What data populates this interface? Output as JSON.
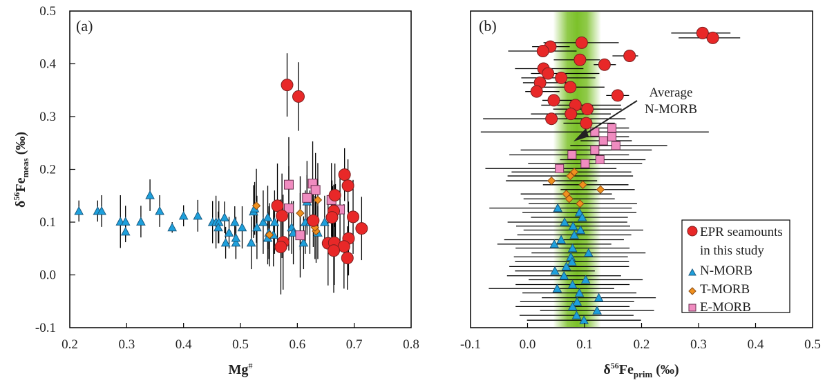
{
  "chart_data": [
    {
      "type": "scatter",
      "panel_label": "(a)",
      "xlabel": "Mg#",
      "xlabel_main": "Mg",
      "xlabel_sup": "#",
      "ylabel_main": "δ",
      "ylabel_sup": "56",
      "ylabel_fe": "Fe",
      "ylabel_sub": "meas",
      "ylabel_unit": " (‰)",
      "xlim": [
        0.2,
        0.8
      ],
      "ylim": [
        -0.1,
        0.5
      ],
      "xticks": [
        "0.2",
        "0.3",
        "0.4",
        "0.5",
        "0.6",
        "0.7",
        "0.8"
      ],
      "yticks": [
        "-0.1",
        "0.0",
        "0.1",
        "0.2",
        "0.3",
        "0.4",
        "0.5"
      ],
      "xtick_values": [
        0.2,
        0.3,
        0.4,
        0.5,
        0.6,
        0.7,
        0.8
      ],
      "ytick_values": [
        -0.1,
        0.0,
        0.1,
        0.2,
        0.3,
        0.4,
        0.5
      ],
      "grid": false,
      "series": [
        {
          "name": "N-MORB",
          "marker": "triangle",
          "color": "#1ea0dc",
          "points": [
            [
              0.216,
              0.121,
              0.02
            ],
            [
              0.249,
              0.121,
              0.02
            ],
            [
              0.256,
              0.121,
              0.03
            ],
            [
              0.289,
              0.101,
              0.05
            ],
            [
              0.298,
              0.101,
              0.03
            ],
            [
              0.298,
              0.082,
              0.02
            ],
            [
              0.325,
              0.101,
              0.03
            ],
            [
              0.341,
              0.151,
              0.03
            ],
            [
              0.358,
              0.121,
              0.03
            ],
            [
              0.38,
              0.09,
              0.01
            ],
            [
              0.4,
              0.112,
              0.02
            ],
            [
              0.425,
              0.112,
              0.03
            ],
            [
              0.451,
              0.1,
              0.04
            ],
            [
              0.457,
              0.1,
              0.05
            ],
            [
              0.462,
              0.1,
              0.04
            ],
            [
              0.461,
              0.09,
              0.03
            ],
            [
              0.472,
              0.109,
              0.03
            ],
            [
              0.49,
              0.1,
              0.03
            ],
            [
              0.48,
              0.08,
              0.03
            ],
            [
              0.474,
              0.061,
              0.03
            ],
            [
              0.492,
              0.061,
              0.03
            ],
            [
              0.492,
              0.07,
              0.04
            ],
            [
              0.503,
              0.09,
              0.04
            ],
            [
              0.519,
              0.061,
              0.05
            ],
            [
              0.523,
              0.12,
              0.05
            ],
            [
              0.525,
              0.126,
              0.05
            ],
            [
              0.529,
              0.09,
              0.06
            ],
            [
              0.54,
              0.1,
              0.06
            ],
            [
              0.548,
              0.109,
              0.06
            ],
            [
              0.55,
              0.08,
              0.05
            ],
            [
              0.548,
              0.07,
              0.05
            ],
            [
              0.56,
              0.1,
              0.06
            ],
            [
              0.558,
              0.076,
              0.06
            ],
            [
              0.59,
              0.09,
              0.05
            ],
            [
              0.593,
              0.08,
              0.06
            ],
            [
              0.611,
              0.061,
              0.05
            ],
            [
              0.617,
              0.139,
              0.05
            ],
            [
              0.614,
              0.1,
              0.06
            ],
            [
              0.622,
              0.1,
              0.06
            ],
            [
              0.636,
              0.08,
              0.05
            ],
            [
              0.648,
              0.1,
              0.05
            ],
            [
              0.667,
              0.122,
              0.05
            ],
            [
              0.662,
              0.108,
              0.06
            ]
          ]
        },
        {
          "name": "T-MORB",
          "marker": "diamond",
          "color": "#f0901e",
          "points": [
            [
              0.528,
              0.131,
              0.07
            ],
            [
              0.636,
              0.142,
              0.07
            ],
            [
              0.605,
              0.117,
              0.07
            ],
            [
              0.633,
              0.083,
              0.06
            ],
            [
              0.551,
              0.076,
              0.06
            ],
            [
              0.631,
              0.09,
              0.06
            ]
          ]
        },
        {
          "name": "E-MORB",
          "marker": "square",
          "color": "#f08cc0",
          "points": [
            [
              0.585,
              0.171,
              0.09
            ],
            [
              0.627,
              0.173,
              0.08
            ],
            [
              0.632,
              0.161,
              0.07
            ],
            [
              0.617,
              0.146,
              0.07
            ],
            [
              0.585,
              0.126,
              0.08
            ],
            [
              0.605,
              0.075,
              0.08
            ],
            [
              0.66,
              0.142,
              0.07
            ],
            [
              0.675,
              0.124,
              0.06
            ]
          ]
        },
        {
          "name": "EPR seamounts in this study",
          "marker": "circle",
          "color": "#e82828",
          "points": [
            [
              0.582,
              0.36,
              0.06
            ],
            [
              0.602,
              0.338,
              0.065
            ],
            [
              0.683,
              0.19,
              0.05
            ],
            [
              0.689,
              0.169,
              0.05
            ],
            [
              0.666,
              0.151,
              0.06
            ],
            [
              0.628,
              0.103,
              0.05
            ],
            [
              0.664,
              0.121,
              0.05
            ],
            [
              0.661,
              0.109,
              0.07
            ],
            [
              0.698,
              0.11,
              0.07
            ],
            [
              0.713,
              0.088,
              0.06
            ],
            [
              0.69,
              0.069,
              0.07
            ],
            [
              0.654,
              0.06,
              0.08
            ],
            [
              0.665,
              0.061,
              0.08
            ],
            [
              0.682,
              0.054,
              0.08
            ],
            [
              0.664,
              0.046,
              0.08
            ],
            [
              0.688,
              0.032,
              0.06
            ],
            [
              0.565,
              0.131,
              0.08
            ],
            [
              0.573,
              0.112,
              0.08
            ],
            [
              0.575,
              0.062,
              0.09
            ],
            [
              0.571,
              0.053,
              0.09
            ]
          ]
        }
      ]
    },
    {
      "type": "scatter",
      "panel_label": "(b)",
      "xlabel": "δ56Feprim (‰)",
      "xlabel_main": "δ",
      "xlabel_sup": "56",
      "xlabel_fe": "Fe",
      "xlabel_sub": "prim",
      "xlabel_unit": " (‰)",
      "ylabel": "",
      "xlim": [
        -0.1,
        0.5
      ],
      "ylim_rows": [
        0,
        72
      ],
      "xticks": [
        "-0.1",
        "0.0",
        "0.1",
        "0.2",
        "0.3",
        "0.4",
        "0.5"
      ],
      "xtick_values": [
        -0.1,
        0.0,
        0.1,
        0.2,
        0.3,
        0.4,
        0.5
      ],
      "grid": false,
      "average_band": {
        "label": "Average N-MORB",
        "center": 0.087,
        "half_width": 0.04,
        "color": "#7cc12a"
      },
      "annotation": {
        "line1": "Average",
        "line2": "N-MORB"
      },
      "legend": {
        "position": "bottom-right",
        "entries": [
          {
            "marker": "circle",
            "color": "#e82828",
            "line1": "EPR seamounts",
            "line2": "in this study"
          },
          {
            "marker": "triangle",
            "color": "#1ea0dc",
            "line1": "N-MORB"
          },
          {
            "marker": "diamond",
            "color": "#f0901e",
            "line1": "T-MORB"
          },
          {
            "marker": "square",
            "color": "#f08cc0",
            "line1": "E-MORB"
          }
        ]
      },
      "series": [
        {
          "name": "EPR seamounts in this study",
          "marker": "circle",
          "color": "#e82828",
          "points": [
            [
              0.307,
              5.0,
              -0.055,
              0.049
            ],
            [
              0.325,
              6.1,
              -0.06,
              0.048
            ],
            [
              0.095,
              7.2,
              -0.067,
              0.065
            ],
            [
              0.04,
              8.1,
              -0.032,
              0.034
            ],
            [
              0.027,
              9.1,
              -0.061,
              0.059
            ],
            [
              0.179,
              10.2,
              -0.03,
              0.015
            ],
            [
              0.092,
              11.1,
              -0.046,
              0.035
            ],
            [
              0.135,
              12.2,
              -0.019,
              0.02
            ],
            [
              0.028,
              13.1,
              -0.05,
              0.07
            ],
            [
              0.036,
              14.2,
              -0.03,
              0.09
            ],
            [
              0.059,
              15.2,
              -0.07,
              0.06
            ],
            [
              0.022,
              16.3,
              -0.03,
              0.05
            ],
            [
              0.075,
              17.3,
              -0.06,
              0.06
            ],
            [
              0.016,
              18.3,
              -0.02,
              0.04
            ],
            [
              0.158,
              19.2,
              -0.02,
              0.02
            ],
            [
              0.046,
              20.3,
              -0.02,
              0.04
            ],
            [
              0.084,
              21.4,
              -0.06,
              0.08
            ],
            [
              0.105,
              22.3,
              -0.06,
              0.06
            ],
            [
              0.076,
              23.4,
              -0.07,
              0.07
            ],
            [
              0.042,
              24.5,
              -0.12,
              0.13
            ],
            [
              0.103,
              25.5,
              -0.04,
              0.05
            ]
          ]
        },
        {
          "name": "E-MORB",
          "marker": "square",
          "color": "#f08cc0",
          "points": [
            [
              0.148,
              26.6,
              -0.03,
              0.03
            ],
            [
              0.118,
              27.5,
              -0.2,
              0.2
            ],
            [
              0.148,
              28.6,
              -0.05,
              0.03
            ],
            [
              0.133,
              29.5,
              -0.04,
              0.05
            ],
            [
              0.155,
              30.6,
              -0.08,
              0.09
            ],
            [
              0.118,
              31.6,
              -0.13,
              0.1
            ],
            [
              0.078,
              32.7,
              -0.11,
              0.1
            ],
            [
              0.127,
              33.8,
              -0.07,
              0.08
            ],
            [
              0.101,
              34.7,
              -0.1,
              0.1
            ],
            [
              0.056,
              35.8,
              -0.13,
              0.1
            ]
          ]
        },
        {
          "name": "T-MORB",
          "marker": "diamond",
          "color": "#f0901e",
          "points": [
            [
              0.082,
              36.6,
              -0.11,
              0.1
            ],
            [
              0.075,
              37.5,
              -0.11,
              0.11
            ],
            [
              0.042,
              38.6,
              -0.08,
              0.08
            ],
            [
              0.097,
              39.5,
              -0.07,
              0.08
            ],
            [
              0.128,
              40.6,
              -0.07,
              0.06
            ],
            [
              0.068,
              41.6,
              -0.08,
              0.08
            ],
            [
              0.073,
              42.7,
              -0.08,
              0.08
            ],
            [
              0.092,
              43.8,
              -0.09,
              0.1
            ]
          ]
        },
        {
          "name": "N-MORB",
          "marker": "triangle",
          "color": "#1ea0dc",
          "points": [
            [
              0.053,
              44.8,
              -0.12,
              0.13
            ],
            [
              0.091,
              45.8,
              -0.1,
              0.1
            ],
            [
              0.096,
              46.9,
              -0.09,
              0.08
            ],
            [
              0.065,
              48.0,
              -0.1,
              0.11
            ],
            [
              0.08,
              48.9,
              -0.1,
              0.1
            ],
            [
              0.093,
              49.8,
              -0.1,
              0.11
            ],
            [
              0.082,
              50.9,
              -0.1,
              0.1
            ],
            [
              0.059,
              52.0,
              -0.1,
              0.11
            ],
            [
              0.047,
              53.0,
              -0.1,
              0.1
            ],
            [
              0.079,
              53.9,
              -0.1,
              0.1
            ],
            [
              0.107,
              55.0,
              -0.1,
              0.1
            ],
            [
              0.076,
              55.9,
              -0.1,
              0.1
            ],
            [
              0.078,
              57.0,
              -0.1,
              0.1
            ],
            [
              0.068,
              58.1,
              -0.1,
              0.11
            ],
            [
              0.048,
              59.1,
              -0.07,
              0.07
            ],
            [
              0.064,
              60.2,
              -0.1,
              0.1
            ],
            [
              0.102,
              61.1,
              -0.1,
              0.1
            ],
            [
              0.079,
              62.2,
              -0.1,
              0.1
            ],
            [
              0.052,
              63.1,
              -0.12,
              0.1
            ],
            [
              0.091,
              64.1,
              -0.1,
              0.1
            ],
            [
              0.125,
              65.2,
              -0.1,
              0.1
            ],
            [
              0.087,
              66.1,
              -0.1,
              0.1
            ],
            [
              0.079,
              67.2,
              -0.1,
              0.1
            ],
            [
              0.122,
              68.1,
              -0.1,
              0.1
            ],
            [
              0.086,
              69.2,
              -0.1,
              0.1
            ],
            [
              0.099,
              70.3,
              -0.1,
              0.1
            ]
          ]
        }
      ]
    }
  ]
}
